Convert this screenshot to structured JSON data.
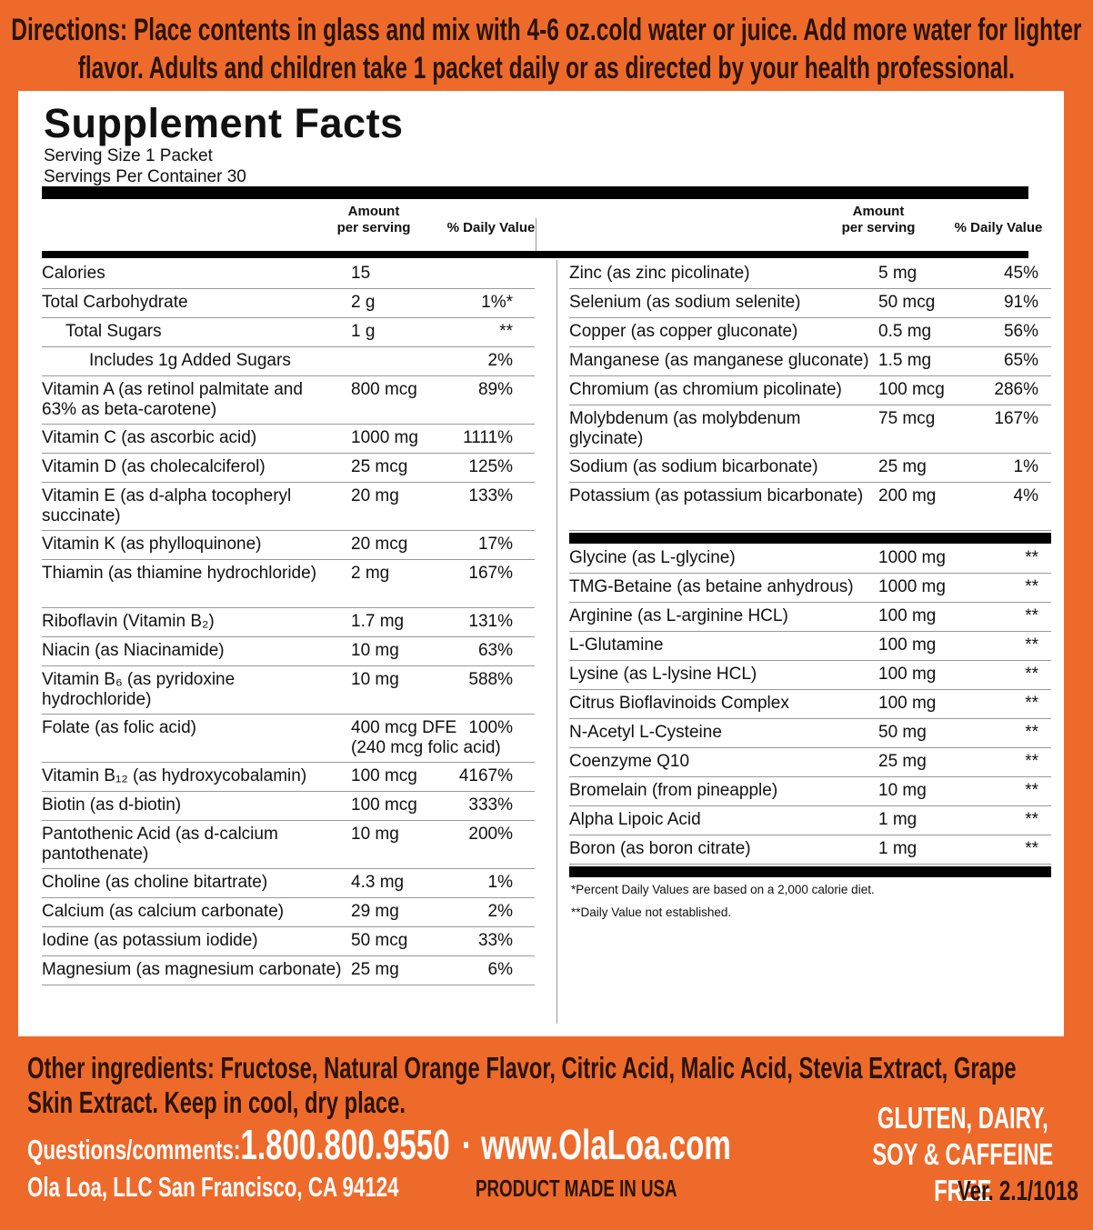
{
  "directions": "Directions: Place contents in glass and mix with 4-6 oz.cold water or juice. Add more water for lighter flavor. Adults and children take 1 packet daily or as directed by your health professional.",
  "facts": {
    "title": "Supplement Facts",
    "serving_size": "Serving Size 1 Packet",
    "servings_per_container": "Servings Per Container 30",
    "left_header": {
      "amount": "Amount per serving",
      "dv": "% Daily Value"
    },
    "right_header": {
      "amount": "Amount per serving",
      "dv": "% Daily Value"
    },
    "left_rows": [
      {
        "name": "Calories",
        "amount": "15"
      },
      {
        "name": "Total Carbohydrate",
        "amount": "2 g",
        "dv": "1%*"
      },
      {
        "name": "Total Sugars",
        "amount": "1 g",
        "dv": "**"
      },
      {
        "name": "Includes 1g Added Sugars",
        "dv": "2%"
      },
      {
        "name": "Vitamin A (as retinol palmitate and 63% as beta-carotene)",
        "amount": "800 mcg",
        "dv": "89%"
      },
      {
        "name": "Vitamin C (as ascorbic acid)",
        "amount": "1000 mg",
        "dv": "1111%"
      },
      {
        "name": "Vitamin D (as cholecalciferol)",
        "amount": "25 mcg",
        "dv": "125%"
      },
      {
        "name": "Vitamin E (as d-alpha tocopheryl succinate)",
        "amount": "20 mg",
        "dv": "133%"
      },
      {
        "name": "Vitamin K (as phylloquinone)",
        "amount": "20 mcg",
        "dv": "17%"
      },
      {
        "name": "Thiamin (as thiamine hydrochloride)",
        "amount": "2 mg",
        "dv": "167%"
      },
      {
        "name": "Riboflavin (Vitamin B₂)",
        "amount": "1.7 mg",
        "dv": "131%"
      },
      {
        "name": "Niacin (as Niacinamide)",
        "amount": "10 mg",
        "dv": "63%"
      },
      {
        "name": "Vitamin B₆ (as pyridoxine hydrochloride)",
        "amount": "10 mg",
        "dv": "588%"
      },
      {
        "name": "Folate (as folic acid)",
        "amount": "400 mcg DFE",
        "dv": "100%",
        "note": "(240 mcg folic acid)"
      },
      {
        "name": "Vitamin B₁₂ (as hydroxycobalamin)",
        "amount": "100 mcg",
        "dv": "4167%"
      },
      {
        "name": "Biotin (as d-biotin)",
        "amount": "100 mcg",
        "dv": "333%"
      },
      {
        "name": "Pantothenic Acid (as d-calcium pantothenate)",
        "amount": "10 mg",
        "dv": "200%"
      },
      {
        "name": "Choline (as choline bitartrate)",
        "amount": "4.3 mg",
        "dv": "1%"
      },
      {
        "name": "Calcium (as calcium carbonate)",
        "amount": "29 mg",
        "dv": "2%"
      },
      {
        "name": "Iodine (as potassium iodide)",
        "amount": "50 mcg",
        "dv": "33%"
      },
      {
        "name": "Magnesium (as magnesium carbonate)",
        "amount": "25 mg",
        "dv": "6%"
      }
    ],
    "right_rows": [
      {
        "name": "Zinc (as zinc picolinate)",
        "amount": "5 mg",
        "dv": "45%"
      },
      {
        "name": "Selenium (as sodium selenite)",
        "amount": "50 mcg",
        "dv": "91%"
      },
      {
        "name": "Copper (as copper gluconate)",
        "amount": "0.5 mg",
        "dv": "56%"
      },
      {
        "name": "Manganese (as manganese gluconate)",
        "amount": "1.5 mg",
        "dv": "65%"
      },
      {
        "name": "Chromium (as chromium picolinate)",
        "amount": "100 mcg",
        "dv": "286%"
      },
      {
        "name": "Molybdenum (as molybdenum glycinate)",
        "amount": "75 mcg",
        "dv": "167%"
      },
      {
        "name": "Sodium (as sodium bicarbonate)",
        "amount": "25 mg",
        "dv": "1%"
      },
      {
        "name": "Potassium (as potassium bicarbonate)",
        "amount": "200 mg",
        "dv": "4%"
      }
    ],
    "other_rows": [
      {
        "name": "Glycine (as L-glycine)",
        "amount": "1000 mg",
        "dv": "**"
      },
      {
        "name": "TMG-Betaine (as betaine anhydrous)",
        "amount": "1000 mg",
        "dv": "**"
      },
      {
        "name": "Arginine (as L-arginine HCL)",
        "amount": "100 mg",
        "dv": "**"
      },
      {
        "name": "L-Glutamine",
        "amount": "100 mg",
        "dv": "**"
      },
      {
        "name": "Lysine (as L-lysine HCL)",
        "amount": "100 mg",
        "dv": "**"
      },
      {
        "name": "Citrus Bioflavinoids Complex",
        "amount": "100 mg",
        "dv": "**"
      },
      {
        "name": "N-Acetyl L-Cysteine",
        "amount": "50 mg",
        "dv": "**"
      },
      {
        "name": "Coenzyme Q10",
        "amount": "25 mg",
        "dv": "**"
      },
      {
        "name": "Bromelain (from pineapple)",
        "amount": "10 mg",
        "dv": "**"
      },
      {
        "name": "Alpha Lipoic Acid",
        "amount": "1 mg",
        "dv": "**"
      },
      {
        "name": "Boron (as boron citrate)",
        "amount": "1 mg",
        "dv": "**"
      }
    ],
    "footnotes": [
      "*Percent Daily Values are based on a 2,000 calorie diet.",
      "**Daily Value not established."
    ]
  },
  "footer": {
    "other_ingredients": "Other ingredients: Fructose, Natural Orange Flavor, Citric Acid, Malic Acid, Stevia Extract, Grape Skin Extract.  Keep in cool, dry place.",
    "questions_label": "Questions/comments:",
    "phone": "1.800.800.9550",
    "separator": "·",
    "website": "www.OlaLoa.com",
    "address": "Ola Loa, LLC  San Francisco, CA 94124",
    "made_in": "PRODUCT MADE IN USA",
    "free_from": "GLUTEN, DAIRY, SOY & CAFFEINE FREE",
    "version": "Ver. 2.1/1018"
  }
}
